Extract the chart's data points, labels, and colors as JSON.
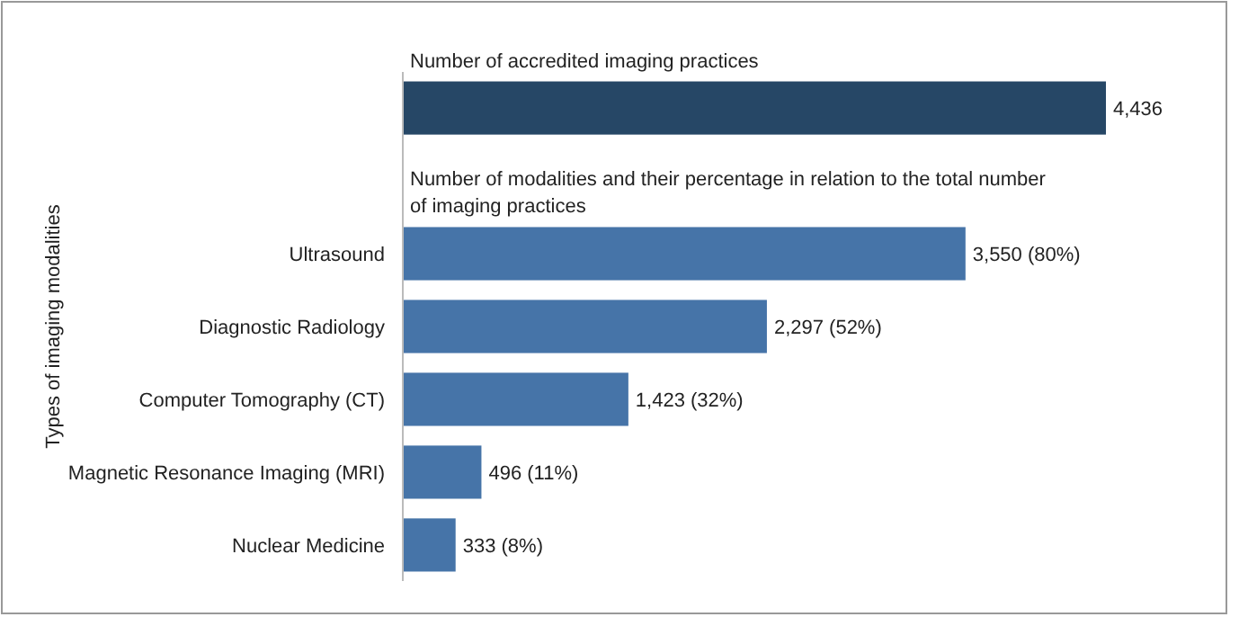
{
  "chart_data": {
    "type": "bar",
    "orientation": "horizontal",
    "ylabel": "Types of imaging modalities",
    "categories": [
      null,
      null,
      "Ultrasound",
      "Diagnostic Radiology",
      "Computer Tomography (CT)",
      "Magnetic Resonance Imaging (MRI)",
      "Nuclear Medicine"
    ],
    "values": [
      4436,
      null,
      3550,
      2297,
      1423,
      496,
      333
    ],
    "colors": [
      "#264766",
      null,
      "#4674a8",
      "#4674a8",
      "#4674a8",
      "#4674a8",
      "#4674a8"
    ],
    "value_labels": [
      "4,436",
      null,
      "3,550 (80%)",
      "2,297 (52%)",
      "1,423 (32%)",
      "496 (11%)",
      "333 (8%)"
    ],
    "annotations": [
      "Number of accredited imaging practices",
      "Number of modalities and their percentage in relation to the total number of imaging practices"
    ]
  }
}
